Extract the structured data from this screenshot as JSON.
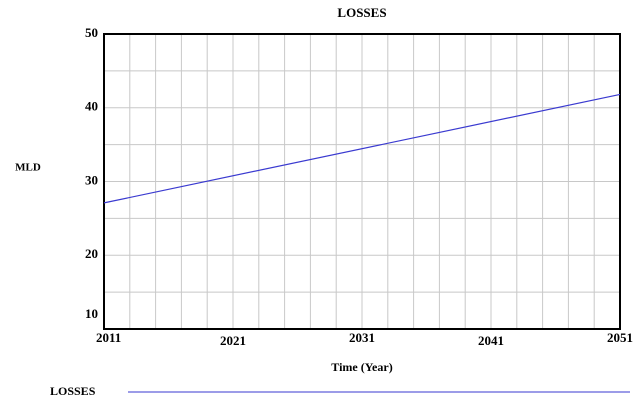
{
  "chart_data": {
    "type": "line",
    "title": "LOSSES",
    "xlabel": "Time (Year)",
    "ylabel": "MLD",
    "x": [
      2011,
      2051
    ],
    "series": [
      {
        "name": "LOSSES",
        "color": "#3a3ad0",
        "values": [
          27.1,
          41.8
        ]
      }
    ],
    "xlim": [
      2011,
      2051
    ],
    "xticks": [
      2011,
      2021,
      2031,
      2041,
      2051
    ],
    "ylim": [
      10,
      50
    ],
    "yticks": [
      10,
      20,
      30,
      40,
      50
    ],
    "grid": true,
    "legend": "bottom"
  }
}
